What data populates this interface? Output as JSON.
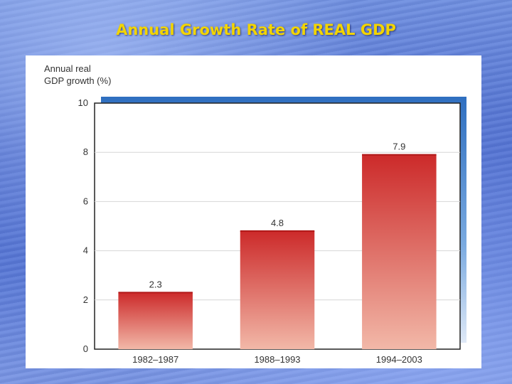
{
  "slide": {
    "title": "Annual Growth Rate of REAL GDP"
  },
  "chart_data": {
    "type": "bar",
    "title": "",
    "ylabel_lines": [
      "Annual real",
      "GDP growth (%)"
    ],
    "xlabel": "",
    "categories": [
      "1982–1987",
      "1988–1993",
      "1994–2003"
    ],
    "values": [
      2.3,
      4.8,
      7.9
    ],
    "data_labels": [
      "2.3",
      "4.8",
      "7.9"
    ],
    "ylim": [
      0,
      10
    ],
    "yticks": [
      0,
      2,
      4,
      6,
      8,
      10
    ],
    "grid": true,
    "bar_color_top": "#cc2a2a",
    "bar_color_bottom": "#f2b8a8",
    "frame_shadow_color": "#3a7cc8"
  }
}
